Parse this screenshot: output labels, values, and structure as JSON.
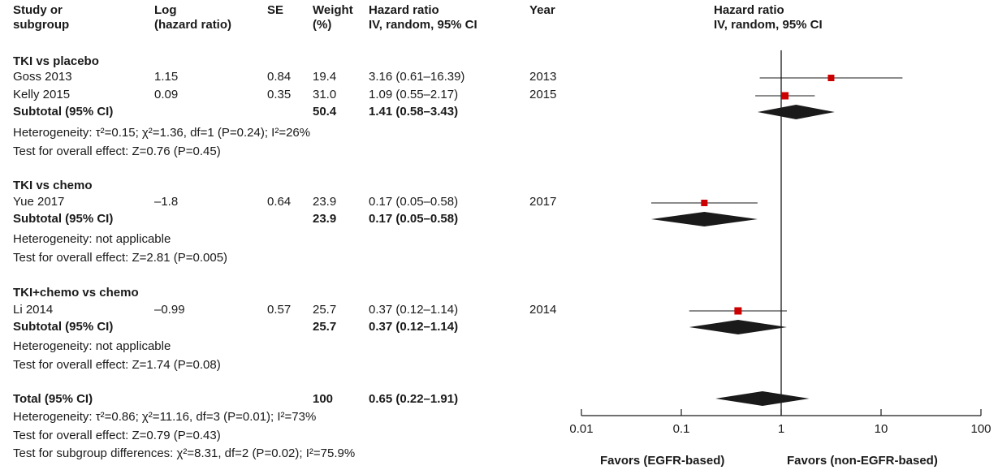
{
  "header": {
    "study": [
      "Study or",
      "subgroup"
    ],
    "log": [
      "Log",
      "(hazard ratio)"
    ],
    "se": "SE",
    "weight": [
      "Weight",
      "(%)"
    ],
    "hr": [
      "Hazard ratio",
      "IV, random, 95% CI"
    ],
    "year": "Year",
    "plot": [
      "Hazard ratio",
      "IV, random, 95% CI"
    ]
  },
  "groups": [
    {
      "title": "TKI vs placebo",
      "studies": [
        {
          "name": "Goss 2013",
          "log": "1.15",
          "se": "0.84",
          "weight": "19.4",
          "hr": "3.16 (0.61–16.39)",
          "year": "2013"
        },
        {
          "name": "Kelly 2015",
          "log": "0.09",
          "se": "0.35",
          "weight": "31.0",
          "hr": "1.09 (0.55–2.17)",
          "year": "2015"
        }
      ],
      "subtotal": {
        "label": "Subtotal (95% CI)",
        "weight": "50.4",
        "hr": "1.41 (0.58–3.43)"
      },
      "heterogeneity": "Heterogeneity: τ²=0.15; χ²=1.36, df=1 (P=0.24); I²=26%",
      "overall": "Test for overall effect: Z=0.76 (P=0.45)"
    },
    {
      "title": "TKI vs chemo",
      "studies": [
        {
          "name": "Yue 2017",
          "log": "–1.8",
          "se": "0.64",
          "weight": "23.9",
          "hr": "0.17 (0.05–0.58)",
          "year": "2017"
        }
      ],
      "subtotal": {
        "label": "Subtotal (95% CI)",
        "weight": "23.9",
        "hr": "0.17 (0.05–0.58)"
      },
      "heterogeneity": "Heterogeneity: not applicable",
      "overall": "Test for overall effect: Z=2.81 (P=0.005)"
    },
    {
      "title": "TKI+chemo vs chemo",
      "studies": [
        {
          "name": "Li 2014",
          "log": "–0.99",
          "se": "0.57",
          "weight": "25.7",
          "hr": "0.37 (0.12–1.14)",
          "year": "2014"
        }
      ],
      "subtotal": {
        "label": "Subtotal (95% CI)",
        "weight": "25.7",
        "hr": "0.37 (0.12–1.14)"
      },
      "heterogeneity": "Heterogeneity: not applicable",
      "overall": "Test for overall effect: Z=1.74 (P=0.08)"
    }
  ],
  "total": {
    "label": "Total (95% CI)",
    "weight": "100",
    "hr": "0.65 (0.22–1.91)",
    "heterogeneity": "Heterogeneity: τ²=0.86; χ²=11.16, df=3 (P=0.01); I²=73%",
    "overall": "Test for overall effect: Z=0.79 (P=0.43)",
    "subgroup": "Test for subgroup differences: χ²=8.31, df=2 (P=0.02); I²=75.9%"
  },
  "chart_data": {
    "type": "forest",
    "x_scale": "log",
    "xlim": [
      0.01,
      100
    ],
    "ticks": [
      "0.01",
      "0.1",
      "1",
      "10",
      "100"
    ],
    "tick_values": [
      0.01,
      0.1,
      1,
      10,
      100
    ],
    "reference_line": 1,
    "favors_left": "Favors (EGFR-based)",
    "favors_right": "Favors (non-EGFR-based)",
    "studies": [
      {
        "name": "Goss 2013",
        "hr": 3.16,
        "lower": 0.61,
        "upper": 16.39
      },
      {
        "name": "Kelly 2015",
        "hr": 1.09,
        "lower": 0.55,
        "upper": 2.17
      },
      {
        "name": "Yue 2017",
        "hr": 0.17,
        "lower": 0.05,
        "upper": 0.58
      },
      {
        "name": "Li 2014",
        "hr": 0.37,
        "lower": 0.12,
        "upper": 1.14
      }
    ],
    "diamonds": [
      {
        "name": "Subtotal TKI vs placebo",
        "hr": 1.41,
        "lower": 0.58,
        "upper": 3.43
      },
      {
        "name": "Subtotal TKI vs chemo",
        "hr": 0.17,
        "lower": 0.05,
        "upper": 0.58
      },
      {
        "name": "Subtotal TKI+chemo vs chemo",
        "hr": 0.37,
        "lower": 0.12,
        "upper": 1.14
      },
      {
        "name": "Total",
        "hr": 0.65,
        "lower": 0.22,
        "upper": 1.91
      }
    ],
    "colors": {
      "marker": "#cc0000",
      "line": "#1a1a1a"
    }
  }
}
